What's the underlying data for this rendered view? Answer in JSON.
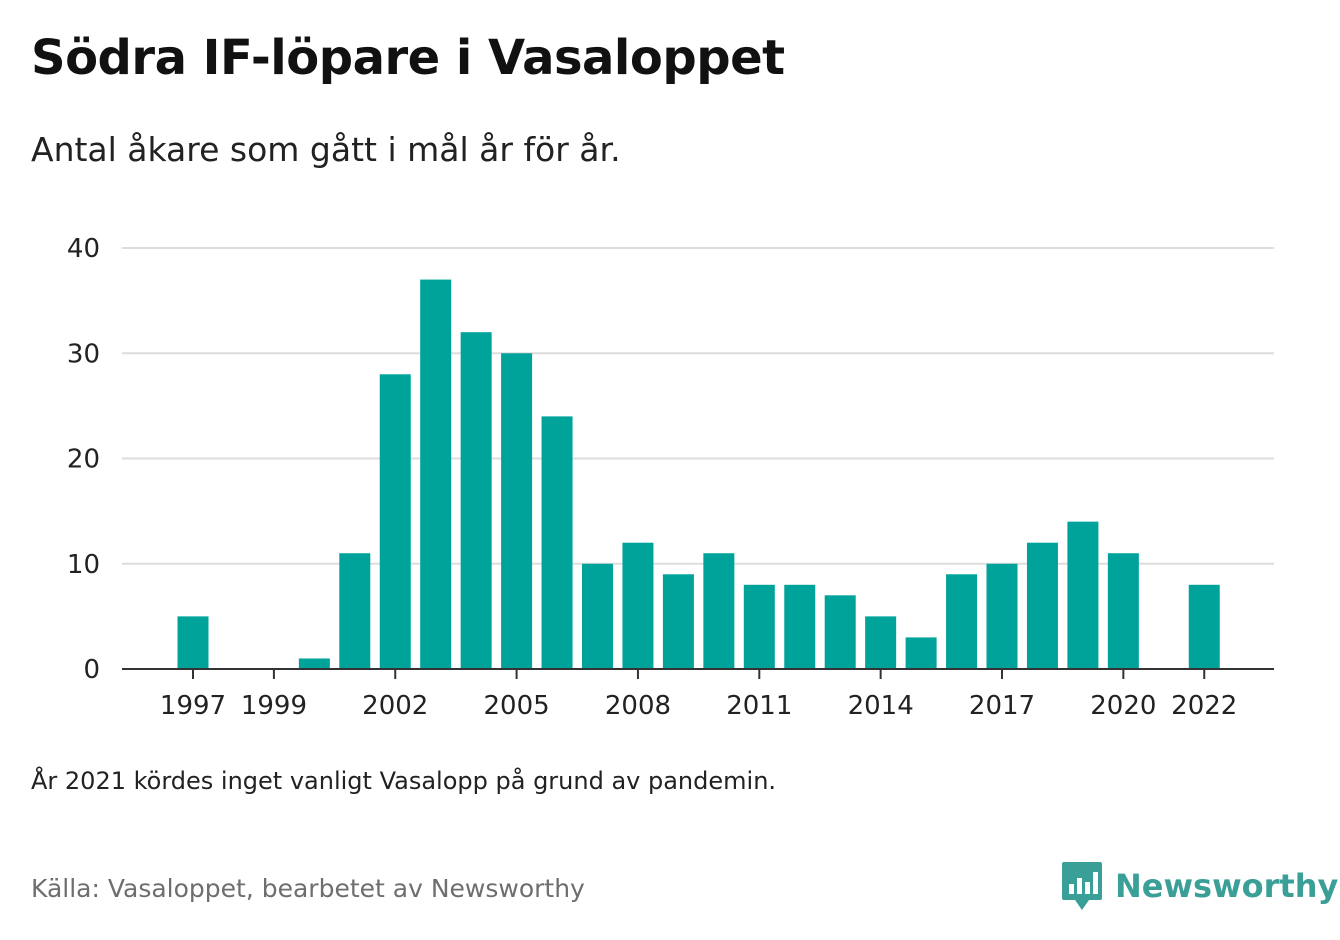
{
  "title": "Södra IF-löpare i Vasaloppet",
  "subtitle": "Antal åkare som gått i mål år för år.",
  "note": "År 2021 kördes inget vanligt Vasalopp på grund av pandemin.",
  "source": "Källa: Vasaloppet, bearbetet av Newsworthy",
  "logo": {
    "text": "Newsworthy",
    "icon": "newsworthy-chart-bubble-icon",
    "color": "#3a9f97"
  },
  "colors": {
    "bar": "#00a39a",
    "grid": "#dddddd",
    "axis": "#333333"
  },
  "chart_data": {
    "type": "bar",
    "x": [
      1997,
      1998,
      1999,
      2000,
      2001,
      2002,
      2003,
      2004,
      2005,
      2006,
      2007,
      2008,
      2009,
      2010,
      2011,
      2012,
      2013,
      2014,
      2015,
      2016,
      2017,
      2018,
      2019,
      2020,
      2021,
      2022
    ],
    "values": [
      5,
      0,
      0,
      1,
      11,
      28,
      37,
      32,
      30,
      24,
      10,
      12,
      9,
      11,
      8,
      8,
      7,
      5,
      3,
      9,
      10,
      12,
      14,
      11,
      null,
      8
    ],
    "x_tick_labels": [
      "1997",
      "1999",
      "2002",
      "2005",
      "2008",
      "2011",
      "2014",
      "2017",
      "2020",
      "2022"
    ],
    "y_ticks": [
      0,
      10,
      20,
      30,
      40
    ],
    "ylim": [
      0,
      40
    ],
    "grid": true,
    "legend": "none"
  }
}
